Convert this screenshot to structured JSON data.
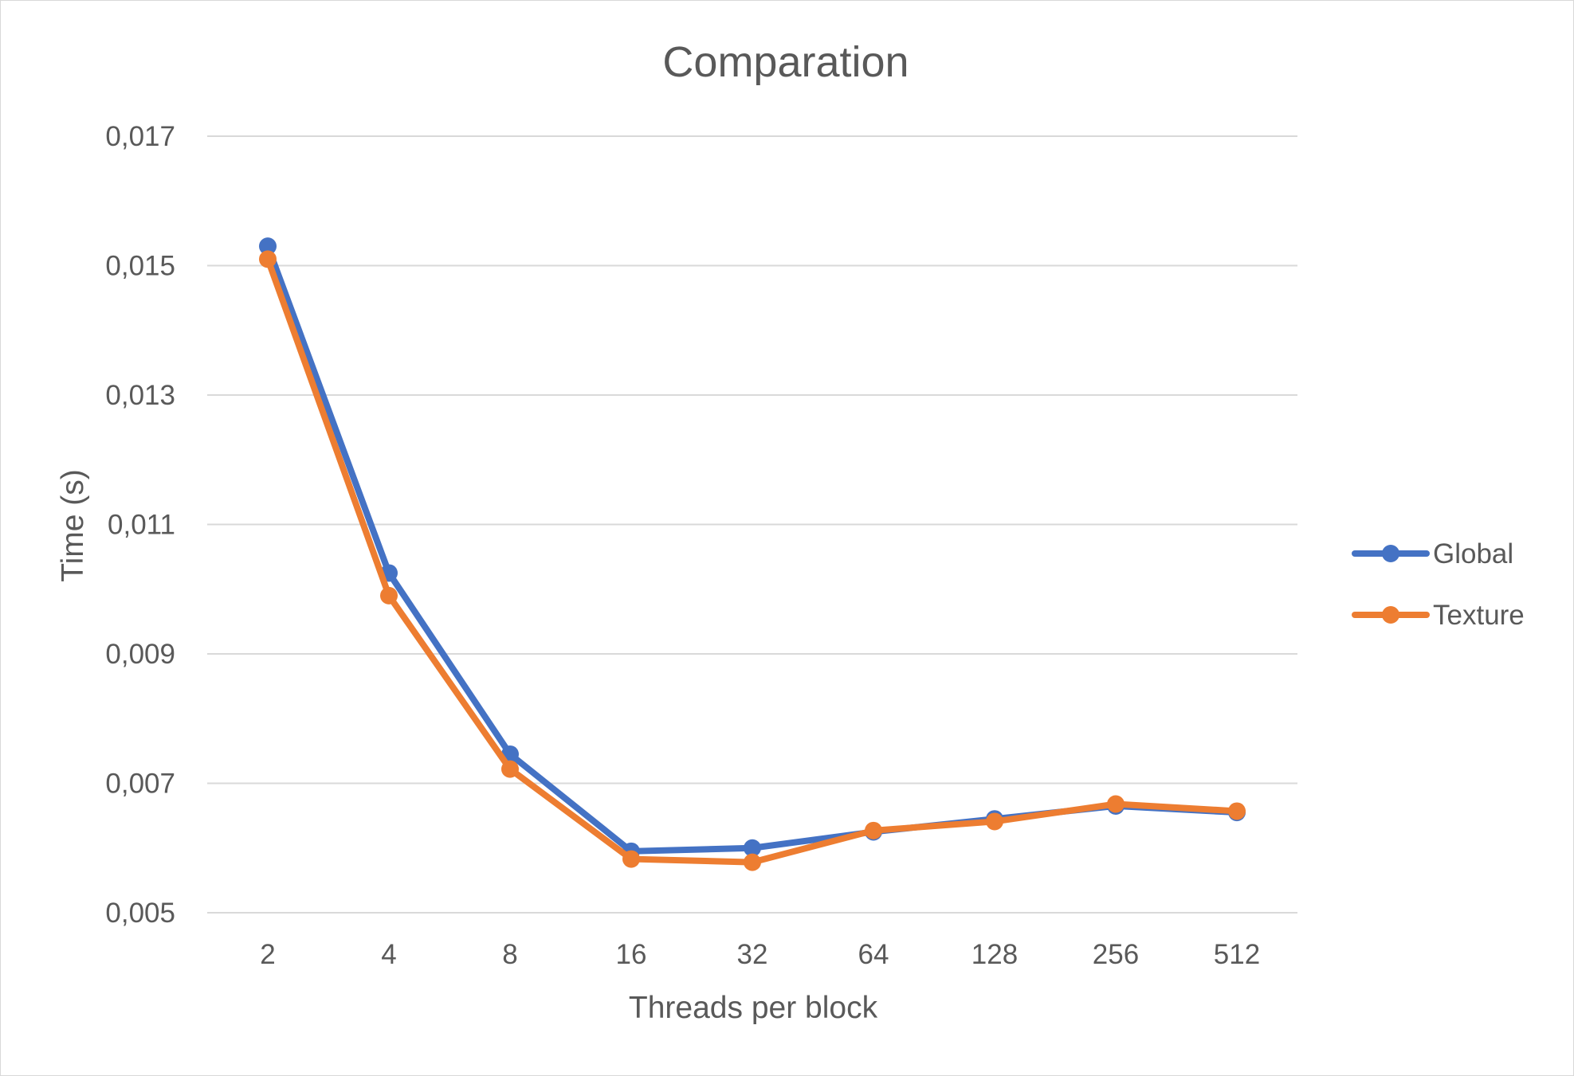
{
  "chart_data": {
    "type": "line",
    "title": "Comparation",
    "xlabel": "Threads per block",
    "ylabel": "Time (s)",
    "categories": [
      "2",
      "4",
      "8",
      "16",
      "32",
      "64",
      "128",
      "256",
      "512"
    ],
    "yticks": [
      "0,005",
      "0,007",
      "0,009",
      "0,011",
      "0,013",
      "0,015",
      "0,017"
    ],
    "ylim": [
      0.005,
      0.017
    ],
    "grid": true,
    "legend_position": "right",
    "series": [
      {
        "name": "Global",
        "color": "#4472C4",
        "values": [
          0.0153,
          0.01025,
          0.00745,
          0.00595,
          0.006,
          0.00625,
          0.00645,
          0.00665,
          0.00655
        ]
      },
      {
        "name": "Texture",
        "color": "#ED7D31",
        "values": [
          0.0151,
          0.0099,
          0.00722,
          0.00583,
          0.00578,
          0.00627,
          0.00641,
          0.00668,
          0.00657
        ]
      }
    ]
  }
}
